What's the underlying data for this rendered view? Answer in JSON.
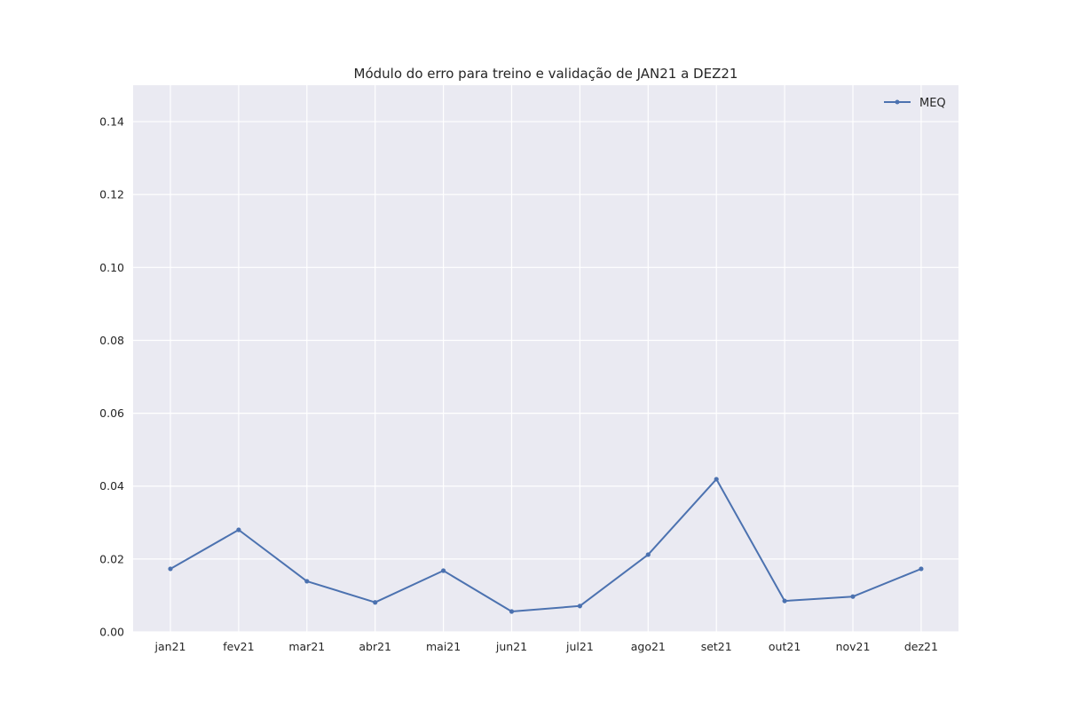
{
  "chart_data": {
    "type": "line",
    "title": "Módulo do erro para treino e validação de JAN21 a DEZ21",
    "xlabel": "",
    "ylabel": "",
    "categories": [
      "jan21",
      "fev21",
      "mar21",
      "abr21",
      "mai21",
      "jun21",
      "jul21",
      "ago21",
      "set21",
      "out21",
      "nov21",
      "dez21"
    ],
    "series": [
      {
        "name": "MEQ",
        "color": "#4c72b0",
        "values": [
          0.0173,
          0.028,
          0.0139,
          0.0081,
          0.0168,
          0.0056,
          0.0071,
          0.0212,
          0.0419,
          0.0085,
          0.0097,
          0.0173
        ]
      }
    ],
    "ylim": [
      0,
      0.15
    ],
    "yticks": [
      "0.00",
      "0.02",
      "0.04",
      "0.06",
      "0.08",
      "0.10",
      "0.12",
      "0.14"
    ],
    "grid": true,
    "legend_position": "top-right",
    "colors": {
      "background": "#eaeaf2",
      "grid": "#ffffff",
      "text": "#262626"
    }
  }
}
